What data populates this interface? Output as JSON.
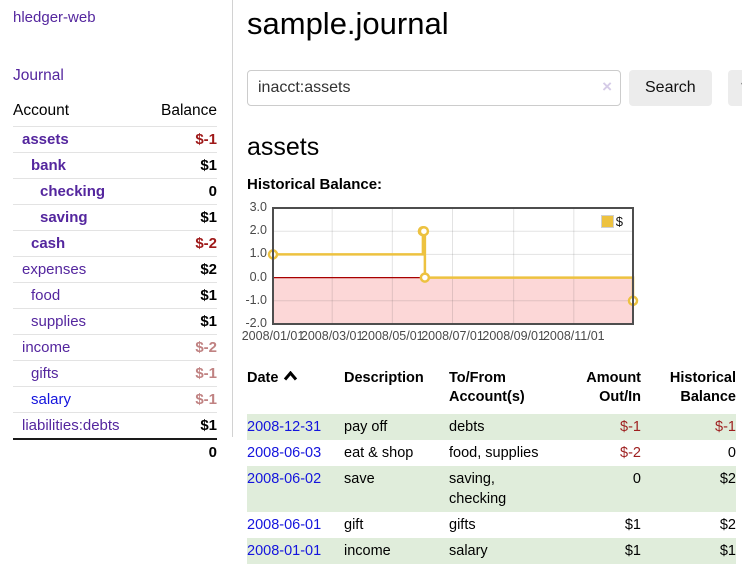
{
  "app": {
    "title": "hledger-web"
  },
  "sidebar": {
    "journal_link": "Journal",
    "account_header": "Account",
    "balance_header": "Balance",
    "accounts": [
      {
        "name": "assets",
        "balance": "$-1"
      },
      {
        "name": "bank",
        "balance": "$1"
      },
      {
        "name": "checking",
        "balance": "0"
      },
      {
        "name": "saving",
        "balance": "$1"
      },
      {
        "name": "cash",
        "balance": "$-2"
      },
      {
        "name": "expenses",
        "balance": "$2"
      },
      {
        "name": "food",
        "balance": "$1"
      },
      {
        "name": "supplies",
        "balance": "$1"
      },
      {
        "name": "income",
        "balance": "$-2"
      },
      {
        "name": "gifts",
        "balance": "$-1"
      },
      {
        "name": "salary",
        "balance": "$-1"
      },
      {
        "name": "liabilities:debts",
        "balance": "$1"
      }
    ],
    "total": "0"
  },
  "header": {
    "title": "sample.journal"
  },
  "search": {
    "value": "inacct:assets",
    "clear_icon": "×",
    "search_button": "Search",
    "help_button": "?"
  },
  "account_page": {
    "title": "assets",
    "chart_label": "Historical Balance:"
  },
  "chart_data": {
    "type": "line",
    "style": "step",
    "xlim": [
      "2008-01-01",
      "2008-12-31"
    ],
    "ylim": [
      -2,
      3
    ],
    "y_ticks": [
      3.0,
      2.0,
      1.0,
      0.0,
      -1.0,
      -2.0
    ],
    "x_ticks": [
      "2008/01/01",
      "2008/03/01",
      "2008/05/01",
      "2008/07/01",
      "2008/09/01",
      "2008/11/01"
    ],
    "series": [
      {
        "name": "$",
        "color": "#edc240",
        "points": [
          [
            "2008-01-01",
            1
          ],
          [
            "2008-06-01",
            2
          ],
          [
            "2008-06-02",
            2
          ],
          [
            "2008-06-03",
            0
          ],
          [
            "2008-12-31",
            -1
          ]
        ]
      }
    ],
    "negative_region_color": "#fcd7d7",
    "zero_line_color": "#a80000",
    "legend": {
      "label": "$",
      "position": "top-right"
    },
    "grid": true
  },
  "register": {
    "headers": {
      "date": "Date",
      "description": "Description",
      "accounts": "To/From\nAccount(s)",
      "amount": "Amount\nOut/In",
      "balance": "Historical\nBalance"
    },
    "sort": "ascending",
    "rows": [
      {
        "date": "2008-12-31",
        "description": "pay off",
        "accounts": "debts",
        "amount": "$-1",
        "balance": "$-1"
      },
      {
        "date": "2008-06-03",
        "description": "eat & shop",
        "accounts": "food, supplies",
        "amount": "$-2",
        "balance": "0"
      },
      {
        "date": "2008-06-02",
        "description": "save",
        "accounts": "saving, checking",
        "amount": "0",
        "balance": "$2"
      },
      {
        "date": "2008-06-01",
        "description": "gift",
        "accounts": "gifts",
        "amount": "$1",
        "balance": "$2"
      },
      {
        "date": "2008-01-01",
        "description": "income",
        "accounts": "salary",
        "amount": "$1",
        "balance": "$1"
      }
    ]
  }
}
